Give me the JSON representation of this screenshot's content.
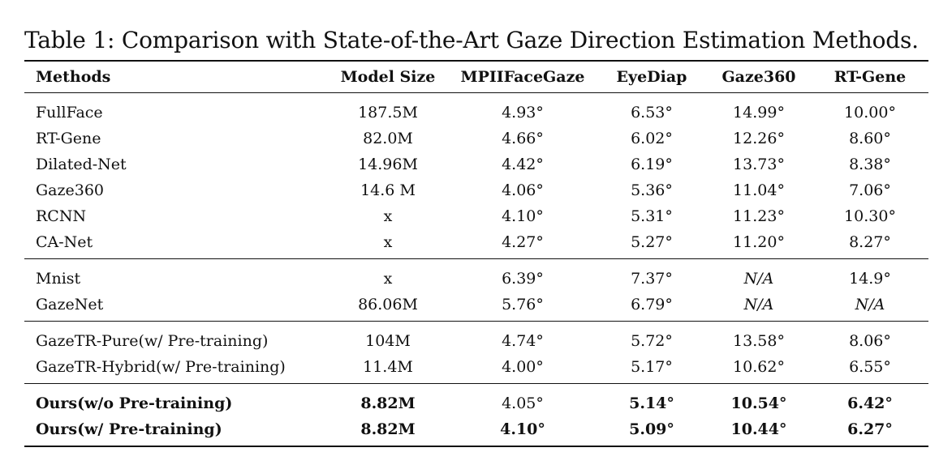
{
  "caption": "Table 1: Comparison with State-of-the-Art Gaze Direction Estimation Methods.",
  "columns": [
    "Methods",
    "Model Size",
    "MPIIFaceGaze",
    "EyeDiap",
    "Gaze360",
    "RT-Gene"
  ],
  "groups": [
    {
      "rows": [
        {
          "method": "FullFace",
          "size": "187.5M",
          "mpii": "4.93°",
          "eyediap": "6.53°",
          "gaze360": "14.99°",
          "rtgene": "10.00°"
        },
        {
          "method": "RT-Gene",
          "size": "82.0M",
          "mpii": "4.66°",
          "eyediap": "6.02°",
          "gaze360": "12.26°",
          "rtgene": "8.60°"
        },
        {
          "method": "Dilated-Net",
          "size": "14.96M",
          "mpii": "4.42°",
          "eyediap": "6.19°",
          "gaze360": "13.73°",
          "rtgene": "8.38°"
        },
        {
          "method": "Gaze360",
          "size": "14.6 M",
          "mpii": "4.06°",
          "eyediap": "5.36°",
          "gaze360": "11.04°",
          "rtgene": "7.06°"
        },
        {
          "method": "RCNN",
          "size": "x",
          "mpii": "4.10°",
          "eyediap": "5.31°",
          "gaze360": "11.23°",
          "rtgene": "10.30°"
        },
        {
          "method": "CA-Net",
          "size": "x",
          "mpii": "4.27°",
          "eyediap": "5.27°",
          "gaze360": "11.20°",
          "rtgene": "8.27°"
        }
      ]
    },
    {
      "rows": [
        {
          "method": "Mnist",
          "size": "x",
          "mpii": "6.39°",
          "eyediap": "7.37°",
          "gaze360": "N/A",
          "rtgene": "14.9°"
        },
        {
          "method": "GazeNet",
          "size": "86.06M",
          "mpii": "5.76°",
          "eyediap": "6.79°",
          "gaze360": "N/A",
          "rtgene": "N/A"
        }
      ]
    },
    {
      "rows": [
        {
          "method": "GazeTR-Pure(w/ Pre-training)",
          "size": "104M",
          "mpii": "4.74°",
          "eyediap": "5.72°",
          "gaze360": "13.58°",
          "rtgene": "8.06°"
        },
        {
          "method": "GazeTR-Hybrid(w/ Pre-training)",
          "size": "11.4M",
          "mpii": "4.00°",
          "eyediap": "5.17°",
          "gaze360": "10.62°",
          "rtgene": "6.55°"
        }
      ]
    },
    {
      "rows": [
        {
          "method": "Ours(w/o Pre-training)",
          "size": "8.82M",
          "mpii": "4.05°",
          "eyediap": "5.14°",
          "gaze360": "10.54°",
          "rtgene": "6.42°"
        },
        {
          "method": "Ours(w/ Pre-training)",
          "size": "8.82M",
          "mpii": "4.10°",
          "eyediap": "5.09°",
          "gaze360": "10.44°",
          "rtgene": "6.27°"
        }
      ]
    }
  ]
}
